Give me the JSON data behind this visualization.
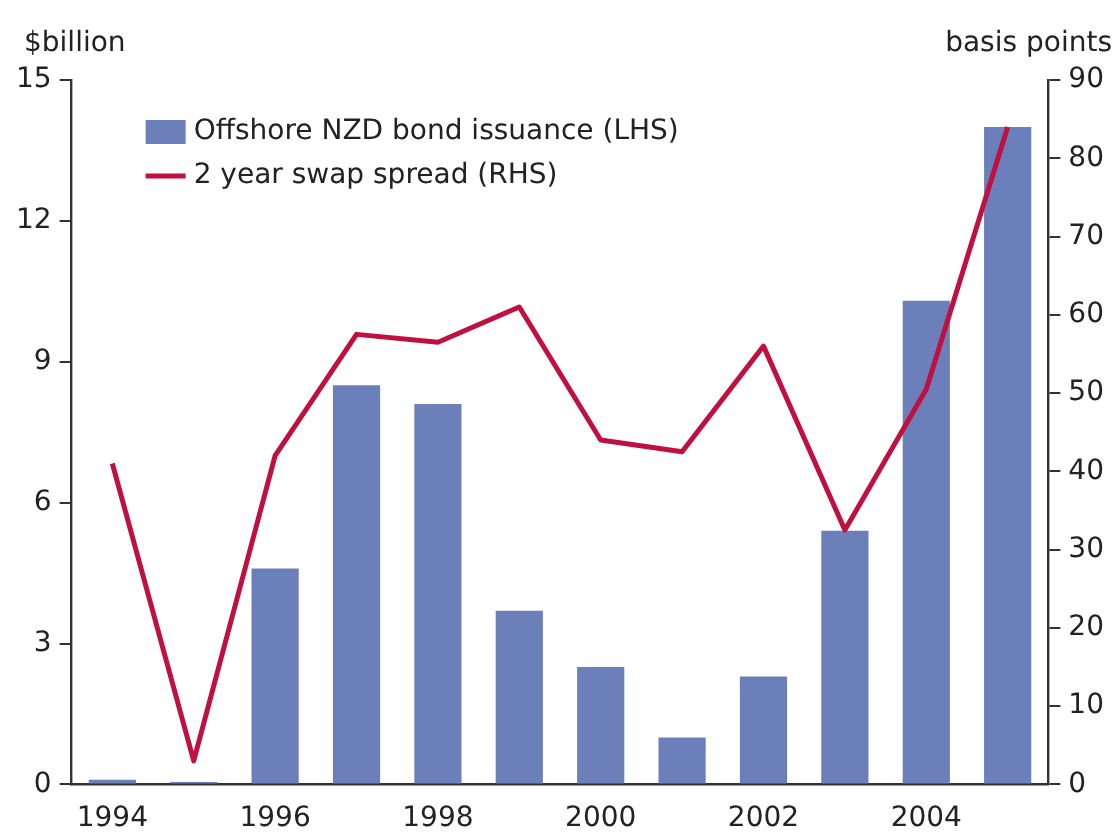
{
  "chart_data": {
    "type": "bar",
    "ylabel": "$billion",
    "y2label": "basis points",
    "categories": [
      "1994",
      null,
      "1996",
      null,
      "1998",
      null,
      "2000",
      null,
      "2002",
      null,
      "2004",
      null
    ],
    "series": [
      {
        "name": "Offshore NZD bond issuance (LHS)",
        "color": "#6b7fbb",
        "values": [
          0.1,
          0.05,
          4.6,
          8.5,
          8.1,
          3.7,
          2.5,
          1.0,
          2.3,
          5.4,
          10.3,
          14.0
        ]
      },
      {
        "name": "2 year swap spread (RHS)",
        "type": "line",
        "axis": "y2",
        "color": "#c0103f",
        "values": [
          41,
          3,
          42,
          57.5,
          56.5,
          61,
          44,
          42.5,
          56,
          32.5,
          50.5,
          84
        ]
      }
    ],
    "ylim": [
      0,
      15
    ],
    "yticks": [
      0,
      3,
      6,
      9,
      12,
      15
    ],
    "y2lim": [
      0,
      90
    ],
    "y2ticks": [
      0,
      10,
      20,
      30,
      40,
      50,
      60,
      70,
      80,
      90
    ],
    "grid": false,
    "legend": "top left",
    "marker": "none"
  }
}
